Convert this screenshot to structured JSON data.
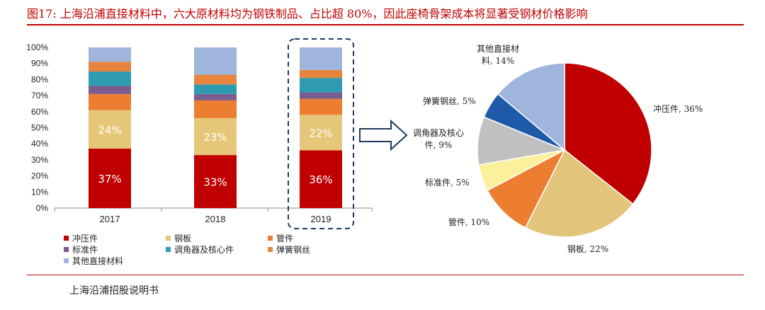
{
  "figure": {
    "title": "图17:  上海沿浦直接材料中，六大原材料均为钢铁制品、占比超 80%，因此座椅骨架成本将显著受钢材价格影响",
    "source": "上海沿浦招股说明书"
  },
  "chart_data": [
    {
      "type": "bar",
      "stacked": true,
      "categories": [
        "2017",
        "2018",
        "2019"
      ],
      "highlight_category": "2019",
      "ylim": [
        0,
        100
      ],
      "yticks": [
        "0%",
        "10%",
        "20%",
        "30%",
        "40%",
        "50%",
        "60%",
        "70%",
        "80%",
        "90%",
        "100%"
      ],
      "legend_position": "bottom",
      "series": [
        {
          "name": "冲压件",
          "color": "#c00000",
          "values": [
            37,
            33,
            36
          ],
          "labels": [
            "37%",
            "33%",
            "36%"
          ],
          "label_color": "#ffffff"
        },
        {
          "name": "钢板",
          "color": "#e6c77a",
          "values": [
            24,
            23,
            22
          ],
          "labels": [
            "24%",
            "23%",
            "22%"
          ],
          "label_color": "#ffffff"
        },
        {
          "name": "管件",
          "color": "#ed7d31",
          "values": [
            10,
            11,
            10
          ],
          "labels": [
            "",
            "",
            ""
          ],
          "label_color": "#ffffff"
        },
        {
          "name": "标准件",
          "color": "#7a5c8e",
          "values": [
            5,
            4,
            4
          ],
          "labels": [
            "",
            "",
            ""
          ],
          "label_color": "#ffffff"
        },
        {
          "name": "调角器及核心件",
          "color": "#2f9bb3",
          "values": [
            9,
            6,
            9
          ],
          "labels": [
            "",
            "",
            ""
          ],
          "label_color": "#ffffff"
        },
        {
          "name": "弹簧钢丝",
          "color": "#e8843e",
          "values": [
            6,
            6,
            5
          ],
          "labels": [
            "",
            "",
            ""
          ],
          "label_color": "#ffffff"
        },
        {
          "name": "其他直接材料",
          "color": "#9fb5db",
          "values": [
            9,
            17,
            14
          ],
          "labels": [
            "",
            "",
            ""
          ],
          "label_color": "#ffffff"
        }
      ]
    },
    {
      "type": "pie",
      "slices": [
        {
          "name": "冲压件",
          "value": 36,
          "label": "冲压件, 36%",
          "color": "#c00000"
        },
        {
          "name": "钢板",
          "value": 22,
          "label": "钢板, 22%",
          "color": "#e2c47a"
        },
        {
          "name": "管件",
          "value": 10,
          "label": "管件, 10%",
          "color": "#ed7d31"
        },
        {
          "name": "标准件",
          "value": 5,
          "label": "标准件, 5%",
          "color": "#fbf09b"
        },
        {
          "name": "调角器及核心件",
          "value": 9,
          "label_lines": [
            "调角器及核心",
            "件, 9%"
          ],
          "color": "#c0c0c0"
        },
        {
          "name": "弹簧钢丝",
          "value": 5,
          "label": "弹簧钢丝, 5%",
          "color": "#1f5aa8"
        },
        {
          "name": "其他直接材料",
          "value": 14,
          "label_lines": [
            "其他直接材",
            "料, 14%"
          ],
          "color": "#9fb5db"
        }
      ]
    }
  ]
}
